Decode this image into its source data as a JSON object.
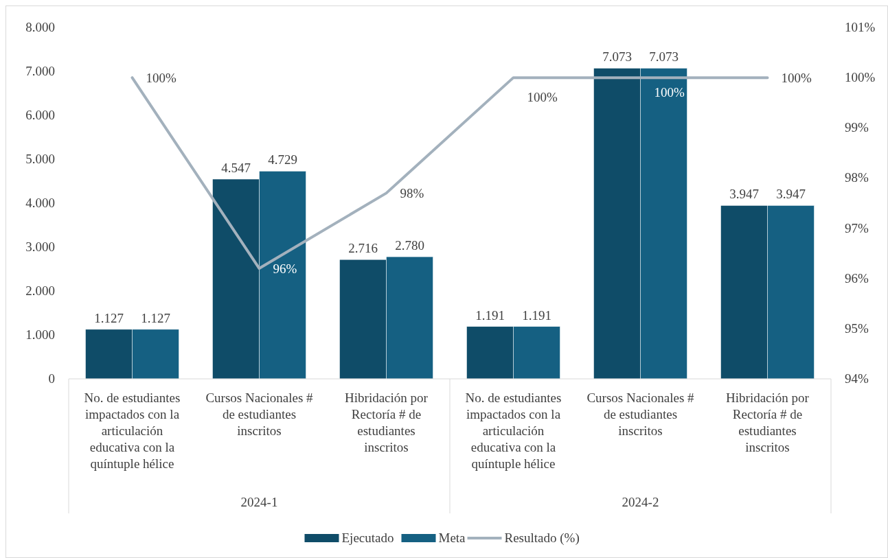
{
  "chart_data": {
    "type": "bar",
    "categories": [
      "No. de estudiantes impactados con la articulación educativa con la quíntuple hélice",
      "Cursos Nacionales # de estudiantes inscritos",
      "Hibridación por Rectoría # de estudiantes inscritos",
      "No. de estudiantes impactados con la articulación educativa con la quíntuple hélice",
      "Cursos Nacionales # de estudiantes inscritos",
      "Hibridación por Rectoría # de estudiantes inscritos"
    ],
    "annotations": [
      "2024-1",
      "2024-2"
    ],
    "series": [
      {
        "name": "Ejecutado",
        "color": "#0f4c68",
        "values": [
          1127,
          4547,
          2716,
          1191,
          7073,
          3947
        ],
        "value_labels": [
          "1.127",
          "4.547",
          "2.716",
          "1.191",
          "7.073",
          "3.947"
        ]
      },
      {
        "name": "Meta",
        "color": "#156082",
        "values": [
          1127,
          4729,
          2780,
          1191,
          7073,
          3947
        ],
        "value_labels": [
          "1.127",
          "4.729",
          "2.780",
          "1.191",
          "7.073",
          "3.947"
        ]
      },
      {
        "name": "Resultado (%)",
        "type": "line",
        "axis": "y2",
        "color": "#a3b1bd",
        "marker": "none",
        "values": [
          100,
          96.2,
          97.7,
          100,
          100,
          100
        ],
        "value_labels": [
          "100%",
          "96%",
          "98%",
          "100%",
          "100%",
          "100%"
        ]
      }
    ],
    "ylim": [
      0,
      8000
    ],
    "yticks": [
      {
        "value": 0,
        "label": "0"
      },
      {
        "value": 1000,
        "label": "1.000"
      },
      {
        "value": 2000,
        "label": "2.000"
      },
      {
        "value": 3000,
        "label": "3.000"
      },
      {
        "value": 4000,
        "label": "4.000"
      },
      {
        "value": 5000,
        "label": "5.000"
      },
      {
        "value": 6000,
        "label": "6.000"
      },
      {
        "value": 7000,
        "label": "7.000"
      },
      {
        "value": 8000,
        "label": "8.000"
      }
    ],
    "y2lim": [
      94,
      101
    ],
    "y2ticks": [
      {
        "value": 94,
        "label": "94%"
      },
      {
        "value": 95,
        "label": "95%"
      },
      {
        "value": 96,
        "label": "96%"
      },
      {
        "value": 97,
        "label": "97%"
      },
      {
        "value": 98,
        "label": "98%"
      },
      {
        "value": 99,
        "label": "99%"
      },
      {
        "value": 100,
        "label": "100%"
      },
      {
        "value": 101,
        "label": "101%"
      }
    ],
    "grid": false,
    "legend": "bottom"
  }
}
